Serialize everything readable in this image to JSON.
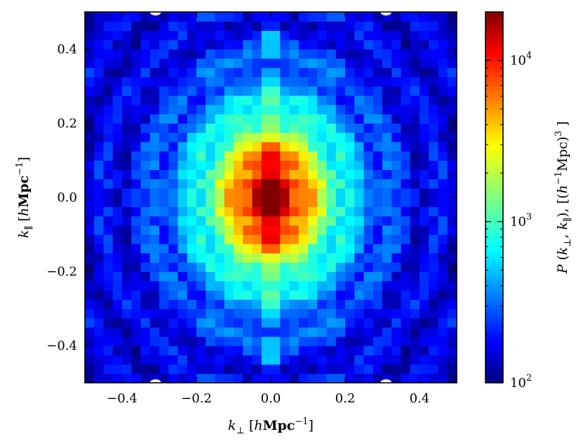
{
  "chart_data": {
    "type": "heatmap",
    "xlabel": "k⊥ [hMpc⁻¹]",
    "ylabel": "k∥ [hMpc⁻¹]",
    "colorbar_label": "P(k⊥, k∥), [(h⁻¹Mpc)³]",
    "xlim": [
      -0.5,
      0.5
    ],
    "ylim": [
      -0.5,
      0.5
    ],
    "x_ticks": [
      -0.4,
      -0.2,
      0.0,
      0.2,
      0.4
    ],
    "x_tick_labels": [
      "−0.4",
      "−0.2",
      "0.0",
      "0.2",
      "0.4"
    ],
    "y_ticks": [
      -0.4,
      -0.2,
      0.0,
      0.2,
      0.4
    ],
    "y_tick_labels": [
      "−0.4",
      "−0.2",
      "0.0",
      "0.2",
      "0.4"
    ],
    "colorbar": {
      "scale": "log",
      "range": [
        100,
        20000
      ],
      "ticks": [
        100,
        1000,
        10000
      ],
      "tick_labels": [
        {
          "base": "10",
          "exp": "2"
        },
        {
          "base": "10",
          "exp": "3"
        },
        {
          "base": "10",
          "exp": "4"
        }
      ],
      "colormap": "jet"
    },
    "grid_size": 40,
    "peak_value": 20000,
    "background_value": 150,
    "grid": false
  }
}
